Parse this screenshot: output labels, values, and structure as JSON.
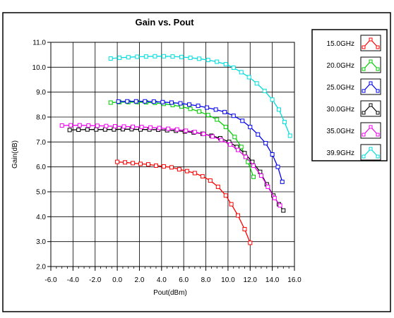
{
  "chart_data": {
    "type": "line",
    "title": "Gain vs. Pout",
    "xlabel": "Pout(dBm)",
    "ylabel": "Gain(dB)",
    "xlim": [
      -6.0,
      16.0
    ],
    "ylim": [
      2.0,
      11.0
    ],
    "xticks": [
      "-6.0",
      "-4.0",
      "-2.0",
      "0.0",
      "2.0",
      "4.0",
      "6.0",
      "8.0",
      "10.0",
      "12.0",
      "14.0",
      "16.0"
    ],
    "yticks": [
      "2.0",
      "3.0",
      "4.0",
      "5.0",
      "6.0",
      "7.0",
      "8.0",
      "9.0",
      "10.0",
      "11.0"
    ],
    "grid": true,
    "legend_position": "right",
    "series": [
      {
        "name": "15.0GHz",
        "color": "#ff0000",
        "x": [
          0.0,
          0.7,
          1.4,
          2.1,
          2.8,
          3.5,
          4.2,
          4.9,
          5.6,
          6.3,
          7.0,
          7.7,
          8.4,
          9.1,
          9.8,
          10.3,
          10.9,
          11.5,
          12.0
        ],
        "y": [
          6.2,
          6.18,
          6.15,
          6.12,
          6.1,
          6.05,
          6.02,
          5.98,
          5.9,
          5.83,
          5.75,
          5.62,
          5.45,
          5.2,
          4.85,
          4.5,
          4.05,
          3.5,
          2.95
        ]
      },
      {
        "name": "20.0GHz",
        "color": "#00cc00",
        "x": [
          -0.6,
          0.2,
          1.0,
          1.8,
          2.6,
          3.4,
          4.2,
          5.0,
          5.8,
          6.6,
          7.4,
          8.2,
          9.0,
          9.8,
          10.6,
          11.2,
          11.8,
          12.3
        ],
        "y": [
          8.58,
          8.6,
          8.6,
          8.6,
          8.59,
          8.57,
          8.53,
          8.48,
          8.42,
          8.33,
          8.22,
          8.08,
          7.9,
          7.6,
          7.2,
          6.8,
          6.2,
          5.6
        ]
      },
      {
        "name": "25.0GHz",
        "color": "#0000ee",
        "x": [
          0.1,
          0.9,
          1.7,
          2.5,
          3.3,
          4.1,
          4.9,
          5.7,
          6.5,
          7.3,
          8.1,
          8.9,
          9.7,
          10.5,
          11.3,
          12.0,
          12.7,
          13.4,
          14.0,
          14.5,
          14.9
        ],
        "y": [
          8.62,
          8.63,
          8.63,
          8.63,
          8.62,
          8.6,
          8.58,
          8.55,
          8.5,
          8.45,
          8.38,
          8.3,
          8.2,
          8.05,
          7.85,
          7.6,
          7.3,
          6.95,
          6.5,
          6.0,
          5.4
        ]
      },
      {
        "name": "30.0GHz",
        "color": "#000000",
        "x": [
          -4.3,
          -3.5,
          -2.7,
          -1.9,
          -1.1,
          -0.3,
          0.5,
          1.3,
          2.1,
          2.9,
          3.7,
          4.5,
          5.3,
          6.1,
          6.9,
          7.7,
          8.5,
          9.3,
          10.1,
          10.8,
          11.5,
          12.2,
          12.9,
          13.5,
          14.1,
          14.6,
          15.0
        ],
        "y": [
          7.48,
          7.49,
          7.5,
          7.5,
          7.5,
          7.5,
          7.51,
          7.51,
          7.5,
          7.5,
          7.49,
          7.47,
          7.45,
          7.42,
          7.38,
          7.33,
          7.25,
          7.15,
          7.0,
          6.8,
          6.55,
          6.2,
          5.8,
          5.3,
          4.85,
          4.5,
          4.25
        ]
      },
      {
        "name": "35.0GHz",
        "color": "#ee00ee",
        "x": [
          -5.0,
          -4.2,
          -3.4,
          -2.6,
          -1.8,
          -1.0,
          -0.2,
          0.6,
          1.4,
          2.2,
          3.0,
          3.8,
          4.6,
          5.4,
          6.2,
          7.0,
          7.8,
          8.6,
          9.4,
          10.2,
          10.9,
          11.6,
          12.3,
          13.0,
          13.6,
          14.2,
          14.7
        ],
        "y": [
          7.66,
          7.67,
          7.67,
          7.66,
          7.65,
          7.64,
          7.63,
          7.62,
          7.61,
          7.6,
          7.58,
          7.56,
          7.53,
          7.5,
          7.45,
          7.4,
          7.32,
          7.22,
          7.08,
          6.9,
          6.68,
          6.4,
          6.05,
          5.65,
          5.2,
          4.75,
          4.45
        ]
      },
      {
        "name": "39.9GHz",
        "color": "#00dddd",
        "x": [
          -0.6,
          0.2,
          1.0,
          1.8,
          2.6,
          3.4,
          4.2,
          5.0,
          5.8,
          6.6,
          7.4,
          8.2,
          9.0,
          9.8,
          10.5,
          11.2,
          11.9,
          12.6,
          13.3,
          14.0,
          14.6,
          15.1,
          15.6
        ],
        "y": [
          10.35,
          10.38,
          10.4,
          10.42,
          10.43,
          10.44,
          10.44,
          10.43,
          10.41,
          10.38,
          10.34,
          10.29,
          10.22,
          10.12,
          9.98,
          9.8,
          9.6,
          9.35,
          9.05,
          8.7,
          8.3,
          7.8,
          7.25
        ]
      }
    ]
  }
}
